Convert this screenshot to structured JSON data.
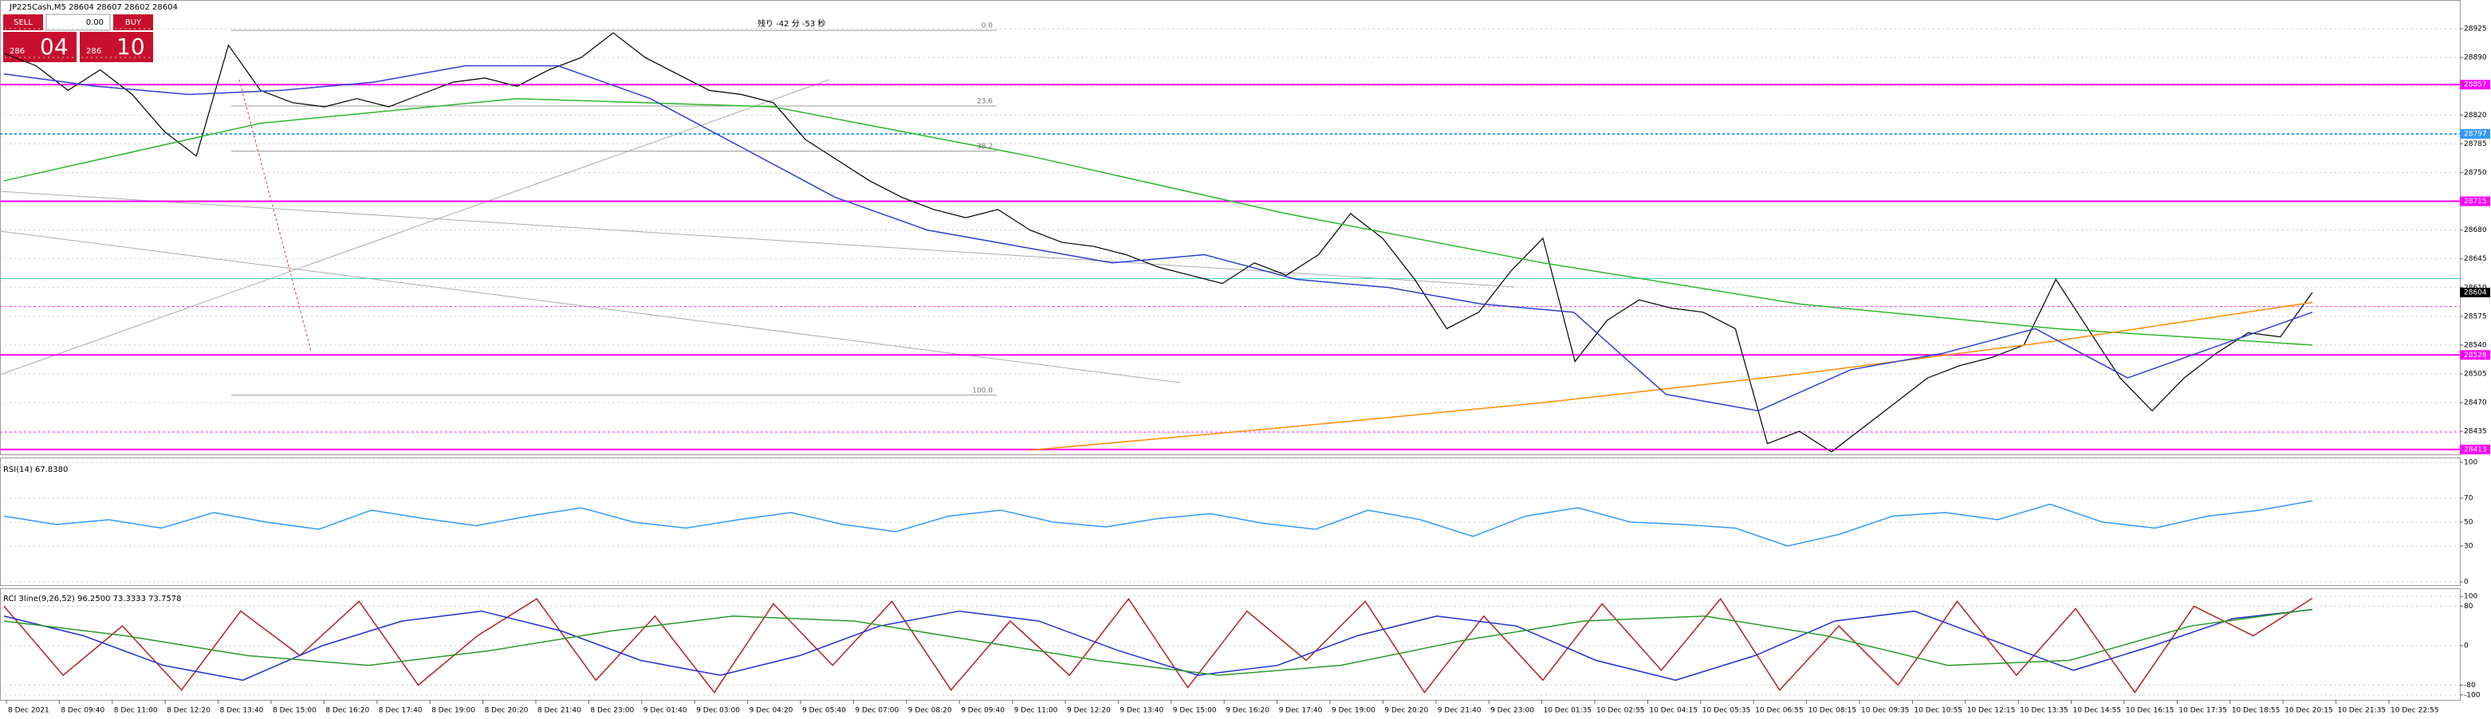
{
  "header": {
    "symbol": "JP225Cash,M5 28604 28607 28602 28604",
    "timer": "残り -42 分 -53 秒"
  },
  "trade_panel": {
    "sell": "SELL",
    "lot": "0.00",
    "buy": "BUY",
    "sell_small": "286",
    "sell_big": "04",
    "buy_small": "286",
    "buy_big": "10"
  },
  "chart_data": [
    {
      "type": "line",
      "ylim": [
        28407,
        28960
      ],
      "yticks": [
        28925,
        28890,
        28855,
        28820,
        28785,
        28750,
        28715,
        28680,
        28645,
        28610,
        28575,
        28540,
        28505,
        28470,
        28435
      ],
      "x_labels": [
        "8 Dec 2021",
        "8 Dec 09:40",
        "8 Dec 11:00",
        "8 Dec 12:20",
        "8 Dec 13:40",
        "8 Dec 15:00",
        "8 Dec 16:20",
        "8 Dec 17:40",
        "8 Dec 19:00",
        "8 Dec 20:20",
        "8 Dec 21:40",
        "8 Dec 23:00",
        "9 Dec 01:40",
        "9 Dec 03:00",
        "9 Dec 04:20",
        "9 Dec 05:40",
        "9 Dec 07:00",
        "9 Dec 08:20",
        "9 Dec 09:40",
        "9 Dec 11:00",
        "9 Dec 12:20",
        "9 Dec 13:40",
        "9 Dec 15:00",
        "9 Dec 16:20",
        "9 Dec 17:40",
        "9 Dec 19:00",
        "9 Dec 20:20",
        "9 Dec 21:40",
        "9 Dec 23:00",
        "10 Dec 01:35",
        "10 Dec 02:55",
        "10 Dec 04:15",
        "10 Dec 05:35",
        "10 Dec 06:55",
        "10 Dec 08:15",
        "10 Dec 09:35",
        "10 Dec 10:55",
        "10 Dec 12:15",
        "10 Dec 13:35",
        "10 Dec 14:55",
        "10 Dec 16:15",
        "10 Dec 17:35",
        "10 Dec 18:55",
        "10 Dec 20:15",
        "10 Dec 21:35",
        "10 Dec 22:55"
      ],
      "series": [
        {
          "color": "#000000",
          "values": [
            28895,
            28880,
            28850,
            28875,
            28845,
            28800,
            28770,
            28905,
            28850,
            28835,
            28830,
            28840,
            28830,
            28845,
            28860,
            28865,
            28855,
            28875,
            28890,
            28920,
            28890,
            28870,
            28850,
            28845,
            28835,
            28790,
            28765,
            28740,
            28720,
            28705,
            28695,
            28705,
            28680,
            28665,
            28660,
            28650,
            28635,
            28625,
            28615,
            28640,
            28625,
            28650,
            28700,
            28670,
            28620,
            28560,
            28580,
            28630,
            28670,
            28520,
            28570,
            28595,
            28585,
            28580,
            28560,
            28420,
            28435,
            28410,
            28440,
            28470,
            28500,
            28515,
            28525,
            28540,
            28620,
            28560,
            28500,
            28460,
            28500,
            28530,
            28555,
            28550,
            28604
          ]
        },
        {
          "color": "#2db82d",
          "values": [
            28740,
            28810,
            28840,
            28830,
            28770,
            28700,
            28640,
            28590,
            28560,
            28540
          ]
        },
        {
          "color": "#ff8c00",
          "values": [
            null,
            null,
            null,
            null,
            28412,
            28440,
            28470,
            28505,
            28545,
            28592
          ]
        },
        {
          "color": "#3040d0",
          "values": [
            28870,
            28855,
            28845,
            28850,
            28860,
            28880,
            28880,
            28840,
            28780,
            28720,
            28680,
            28660,
            28640,
            28650,
            28620,
            28610,
            28590,
            28580,
            28480,
            28460,
            28510,
            28530,
            28560,
            28500,
            28540,
            28580
          ]
        }
      ],
      "price_lines": [
        {
          "value": 28857,
          "color": "#ff00ff"
        },
        {
          "value": 28797,
          "color": "#3399ff"
        },
        {
          "value": 28715,
          "color": "#ff00ff"
        },
        {
          "value": 28528,
          "color": "#ff00ff"
        },
        {
          "value": 28413,
          "color": "#ff00ff"
        }
      ],
      "last_price": 28604,
      "levels": [
        {
          "value": 28621,
          "color": "#33cccc",
          "dash": false
        },
        {
          "value": 28587,
          "color": "#ff33ff",
          "dash": true
        },
        {
          "value": 28434,
          "color": "#ff33ff",
          "dash": true
        }
      ],
      "fibonacci": {
        "labels": [
          "0.0",
          "23.6",
          "38.2",
          "100.0"
        ],
        "prices": [
          28923,
          28831,
          28776,
          28479
        ]
      }
    },
    {
      "type": "line",
      "label": "RSI(14) 67.8380",
      "ylim": [
        0,
        100
      ],
      "yticks": [
        100,
        70,
        50,
        30,
        0
      ],
      "series": [
        {
          "color": "#3399ff",
          "values": [
            55,
            48,
            52,
            45,
            58,
            50,
            44,
            60,
            53,
            47,
            55,
            62,
            50,
            45,
            52,
            58,
            48,
            42,
            55,
            60,
            50,
            46,
            53,
            57,
            49,
            44,
            60,
            52,
            38,
            55,
            62,
            50,
            48,
            45,
            30,
            40,
            55,
            58,
            52,
            65,
            50,
            45,
            55,
            60,
            67.838
          ]
        }
      ]
    },
    {
      "type": "line",
      "label": "RCI 3line(9,26,52) 96.2500 73.3333 73.7578",
      "ylim": [
        -110,
        110
      ],
      "yticks": [
        100,
        80,
        0,
        -80,
        -100
      ],
      "series": [
        {
          "color": "#b22222",
          "values": [
            80,
            -60,
            40,
            -90,
            70,
            -20,
            90,
            -80,
            20,
            95,
            -70,
            60,
            -95,
            85,
            -40,
            90,
            -90,
            50,
            -60,
            95,
            -85,
            70,
            -30,
            90,
            -95,
            60,
            -70,
            85,
            -50,
            95,
            -90,
            40,
            -80,
            90,
            -60,
            75,
            -95,
            80,
            20,
            96.25
          ]
        },
        {
          "color": "#2030d0",
          "values": [
            60,
            20,
            -40,
            -70,
            0,
            50,
            70,
            30,
            -30,
            -60,
            -20,
            40,
            70,
            50,
            -10,
            -60,
            -40,
            20,
            60,
            40,
            -30,
            -70,
            -20,
            50,
            70,
            10,
            -50,
            0,
            55,
            73.3333
          ]
        },
        {
          "color": "#2a9a2a",
          "values": [
            50,
            20,
            -20,
            -40,
            -10,
            30,
            60,
            50,
            10,
            -30,
            -60,
            -40,
            10,
            50,
            60,
            20,
            -40,
            -30,
            40,
            73.7578
          ]
        }
      ]
    }
  ]
}
